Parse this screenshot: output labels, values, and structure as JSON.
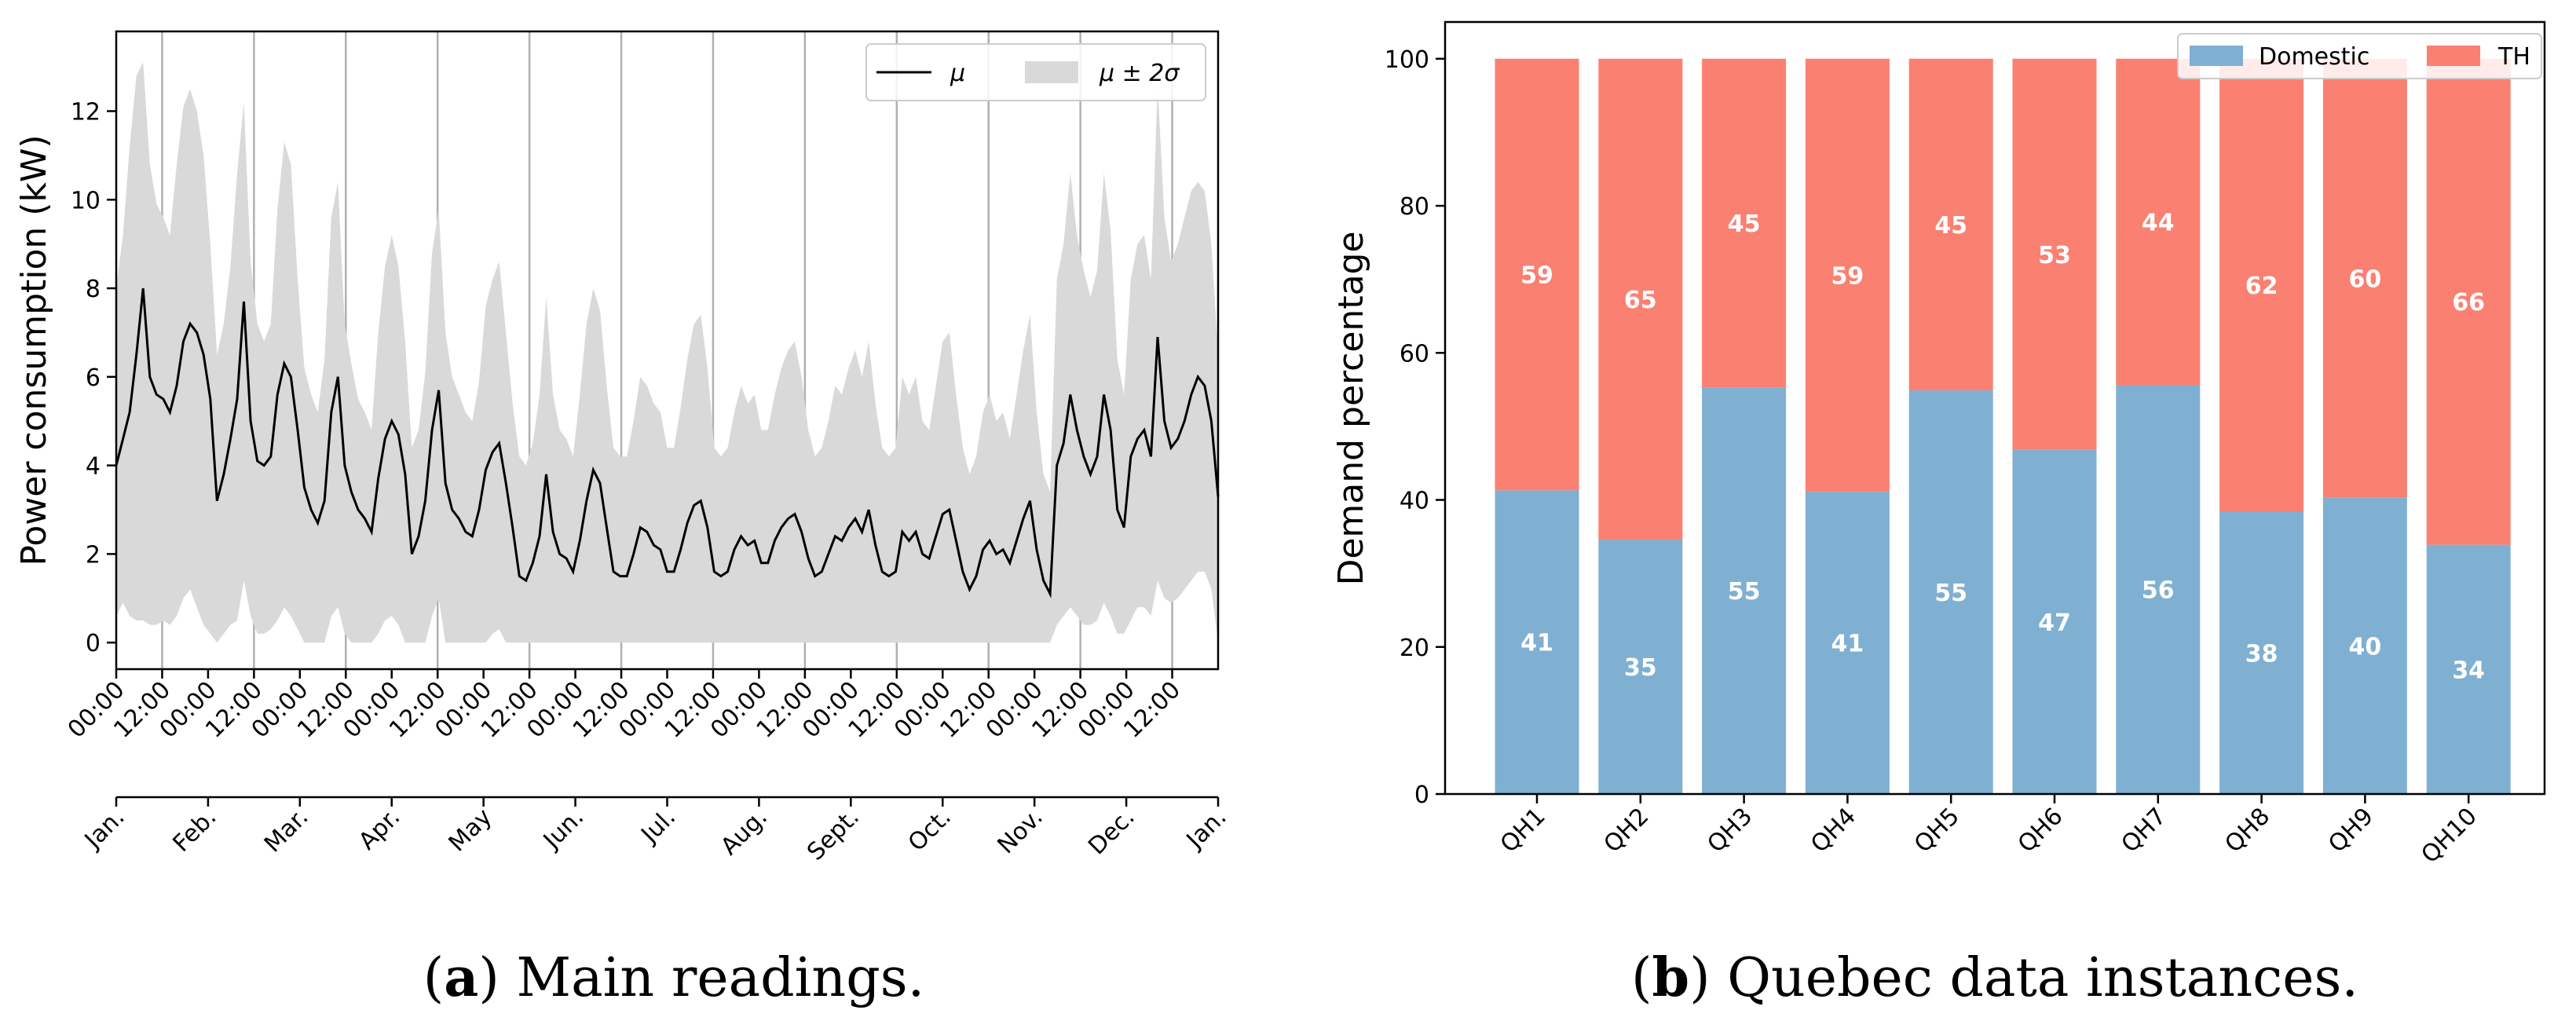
{
  "captions": {
    "a": {
      "letter": "a",
      "text": " Main readings."
    },
    "b": {
      "letter": "b",
      "text": " Quebec data instances."
    }
  },
  "chart_data": [
    {
      "type": "line",
      "id": "main-readings",
      "ylabel": "Power consumption (kW)",
      "xlabel": "",
      "ylim": [
        -0.6,
        13.8
      ],
      "yticks": [
        0,
        2,
        4,
        6,
        8,
        10,
        12
      ],
      "hour_tick_labels": [
        "00:00",
        "12:00",
        "00:00",
        "12:00",
        "00:00",
        "12:00",
        "00:00",
        "12:00",
        "00:00",
        "12:00",
        "00:00",
        "12:00",
        "00:00",
        "12:00",
        "00:00",
        "12:00",
        "00:00",
        "12:00",
        "00:00",
        "12:00",
        "00:00",
        "12:00",
        "00:00",
        "12:00"
      ],
      "month_tick_labels": [
        "Jan.",
        "Feb.",
        "Mar.",
        "Apr.",
        "May",
        "Jun.",
        "Jul.",
        "Aug.",
        "Sept.",
        "Oct.",
        "Nov.",
        "Dec.",
        "Jan."
      ],
      "legend": {
        "mean": "μ",
        "band": "μ ± 2σ",
        "position": "top-right"
      },
      "colors": {
        "mean": "#000000",
        "band": "#d9d9d9",
        "grid": "#b0b0b0"
      },
      "series": [
        {
          "name": "μ",
          "values": [
            4.0,
            4.6,
            5.2,
            6.5,
            8.0,
            6.0,
            5.6,
            5.5,
            5.2,
            5.8,
            6.8,
            7.2,
            7.0,
            6.5,
            5.5,
            3.2,
            3.8,
            4.6,
            5.5,
            7.7,
            5.0,
            4.1,
            4.0,
            4.2,
            5.6,
            6.3,
            6.0,
            4.8,
            3.5,
            3.0,
            2.7,
            3.2,
            5.2,
            6.0,
            4.0,
            3.4,
            3.0,
            2.8,
            2.5,
            3.7,
            4.6,
            5.0,
            4.7,
            3.8,
            2.0,
            2.4,
            3.2,
            4.8,
            5.7,
            3.6,
            3.0,
            2.8,
            2.5,
            2.4,
            3.0,
            3.9,
            4.3,
            4.5,
            3.6,
            2.6,
            1.5,
            1.4,
            1.8,
            2.4,
            3.8,
            2.5,
            2.0,
            1.9,
            1.6,
            2.3,
            3.2,
            3.9,
            3.6,
            2.6,
            1.6,
            1.5,
            1.5,
            2.0,
            2.6,
            2.5,
            2.2,
            2.1,
            1.6,
            1.6,
            2.1,
            2.7,
            3.1,
            3.2,
            2.6,
            1.6,
            1.5,
            1.6,
            2.1,
            2.4,
            2.2,
            2.3,
            1.8,
            1.8,
            2.3,
            2.6,
            2.8,
            2.9,
            2.5,
            1.9,
            1.5,
            1.6,
            2.0,
            2.4,
            2.3,
            2.6,
            2.8,
            2.5,
            3.0,
            2.2,
            1.6,
            1.5,
            1.6,
            2.5,
            2.3,
            2.5,
            2.0,
            1.9,
            2.4,
            2.9,
            3.0,
            2.3,
            1.6,
            1.2,
            1.5,
            2.1,
            2.3,
            2.0,
            2.1,
            1.8,
            2.3,
            2.8,
            3.2,
            2.1,
            1.4,
            1.1,
            4.0,
            4.5,
            5.6,
            4.8,
            4.2,
            3.8,
            4.2,
            5.6,
            4.8,
            3.0,
            2.6,
            4.2,
            4.6,
            4.8,
            4.2,
            6.9,
            5.0,
            4.4,
            4.6,
            5.0,
            5.6,
            6.0,
            5.8,
            5.0,
            3.3
          ]
        },
        {
          "name": "μ ± 2σ upper",
          "values": [
            8.0,
            9.2,
            11.2,
            12.8,
            13.1,
            10.8,
            9.9,
            9.6,
            9.2,
            10.8,
            12.1,
            12.5,
            12.0,
            11.0,
            9.0,
            6.5,
            7.2,
            8.5,
            10.6,
            12.2,
            8.6,
            7.2,
            6.8,
            7.2,
            9.8,
            11.3,
            10.8,
            8.2,
            6.2,
            5.6,
            5.2,
            6.4,
            9.6,
            10.4,
            7.2,
            6.3,
            5.5,
            5.2,
            4.8,
            7.0,
            8.5,
            9.2,
            8.5,
            6.8,
            4.4,
            4.8,
            6.1,
            8.8,
            9.8,
            7.0,
            6.0,
            5.6,
            5.2,
            5.0,
            5.9,
            7.6,
            8.2,
            8.6,
            7.0,
            5.4,
            4.2,
            4.0,
            4.5,
            5.6,
            7.8,
            5.6,
            4.8,
            4.6,
            4.2,
            5.6,
            7.2,
            8.0,
            7.5,
            5.8,
            4.4,
            4.2,
            4.2,
            5.0,
            6.0,
            5.8,
            5.4,
            5.2,
            4.4,
            4.4,
            5.3,
            6.4,
            7.2,
            7.4,
            6.2,
            4.4,
            4.2,
            4.4,
            5.2,
            5.8,
            5.4,
            5.6,
            4.8,
            4.8,
            5.6,
            6.2,
            6.6,
            6.8,
            6.0,
            4.8,
            4.2,
            4.4,
            5.0,
            5.8,
            5.6,
            6.2,
            6.6,
            6.0,
            6.8,
            5.4,
            4.4,
            4.2,
            4.4,
            6.0,
            5.6,
            6.0,
            5.0,
            4.8,
            5.8,
            6.8,
            7.0,
            5.6,
            4.4,
            3.8,
            4.2,
            5.2,
            5.6,
            5.0,
            5.2,
            4.6,
            5.6,
            6.6,
            7.4,
            5.2,
            3.8,
            3.4,
            8.2,
            9.0,
            10.6,
            9.2,
            8.4,
            7.8,
            8.4,
            10.6,
            9.3,
            6.4,
            5.6,
            8.2,
            9.0,
            9.2,
            8.2,
            12.6,
            9.6,
            8.6,
            9.0,
            9.6,
            10.2,
            10.4,
            10.2,
            9.0,
            6.5
          ]
        },
        {
          "name": "μ ± 2σ lower",
          "values": [
            0.6,
            0.9,
            0.6,
            0.5,
            0.5,
            0.4,
            0.4,
            0.5,
            0.4,
            0.6,
            1.0,
            1.2,
            0.8,
            0.4,
            0.2,
            0.0,
            0.2,
            0.4,
            0.5,
            1.4,
            0.6,
            0.2,
            0.2,
            0.3,
            0.5,
            0.8,
            0.6,
            0.3,
            0.0,
            0.0,
            0.0,
            0.0,
            0.6,
            0.8,
            0.2,
            0.0,
            0.0,
            0.0,
            0.0,
            0.2,
            0.5,
            0.6,
            0.4,
            0.0,
            0.0,
            0.0,
            0.0,
            0.6,
            1.0,
            0.0,
            0.0,
            0.0,
            0.0,
            0.0,
            0.0,
            0.0,
            0.2,
            0.3,
            0.0,
            0.0,
            0.0,
            0.0,
            0.0,
            0.0,
            0.0,
            0.0,
            0.0,
            0.0,
            0.0,
            0.0,
            0.0,
            0.0,
            0.0,
            0.0,
            0.0,
            0.0,
            0.0,
            0.0,
            0.0,
            0.0,
            0.0,
            0.0,
            0.0,
            0.0,
            0.0,
            0.0,
            0.0,
            0.0,
            0.0,
            0.0,
            0.0,
            0.0,
            0.0,
            0.0,
            0.0,
            0.0,
            0.0,
            0.0,
            0.0,
            0.0,
            0.0,
            0.0,
            0.0,
            0.0,
            0.0,
            0.0,
            0.0,
            0.0,
            0.0,
            0.0,
            0.0,
            0.0,
            0.0,
            0.0,
            0.0,
            0.0,
            0.0,
            0.0,
            0.0,
            0.0,
            0.0,
            0.0,
            0.0,
            0.0,
            0.0,
            0.0,
            0.0,
            0.0,
            0.0,
            0.0,
            0.0,
            0.0,
            0.0,
            0.0,
            0.0,
            0.0,
            0.0,
            0.0,
            0.0,
            0.0,
            0.4,
            0.6,
            0.8,
            0.6,
            0.4,
            0.4,
            0.5,
            0.9,
            0.6,
            0.2,
            0.2,
            0.5,
            0.8,
            0.8,
            0.6,
            1.4,
            1.0,
            0.9,
            1.0,
            1.2,
            1.4,
            1.6,
            1.6,
            1.2,
            0.0
          ]
        }
      ]
    },
    {
      "type": "bar",
      "id": "quebec-instances",
      "stacked": true,
      "categories": [
        "QH1",
        "QH2",
        "QH3",
        "QH4",
        "QH5",
        "QH6",
        "QH7",
        "QH8",
        "QH9",
        "QH10"
      ],
      "series": [
        {
          "name": "Domestic",
          "color": "#7fb0d2",
          "values": [
            41.3,
            34.6,
            55.3,
            41.1,
            54.9,
            46.8,
            55.6,
            38.4,
            40.3,
            33.9
          ],
          "labels": [
            "41",
            "35",
            "55",
            "41",
            "55",
            "47",
            "56",
            "38",
            "40",
            "34"
          ]
        },
        {
          "name": "TH",
          "color": "#fa8072",
          "values": [
            58.7,
            65.4,
            44.7,
            58.9,
            45.1,
            53.2,
            44.4,
            61.6,
            59.7,
            66.1
          ],
          "labels": [
            "59",
            "65",
            "45",
            "59",
            "45",
            "53",
            "44",
            "62",
            "60",
            "66"
          ]
        }
      ],
      "ylabel": "Demand percentage",
      "xlabel": "",
      "ylim": [
        0,
        105
      ],
      "yticks": [
        0,
        20,
        40,
        60,
        80,
        100
      ],
      "legend": {
        "position": "top-right"
      }
    }
  ]
}
